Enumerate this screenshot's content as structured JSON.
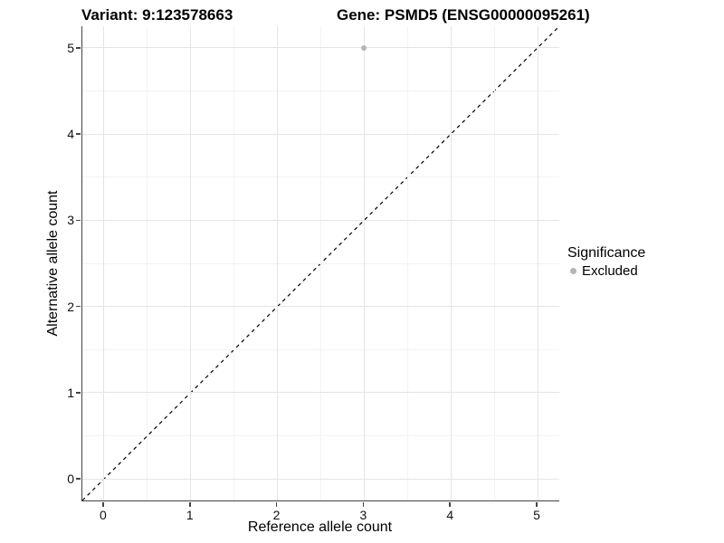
{
  "titles": {
    "variant": "Variant: 9:123578663",
    "gene": "Gene: PSMD5 (ENSG00000095261)"
  },
  "chart_data": {
    "type": "scatter",
    "xlabel": "Reference allele count",
    "ylabel": "Alternative allele count",
    "xlim": [
      -0.25,
      5.25
    ],
    "ylim": [
      -0.25,
      5.25
    ],
    "x_ticks": [
      0,
      1,
      2,
      3,
      4,
      5
    ],
    "y_ticks": [
      0,
      1,
      2,
      3,
      4,
      5
    ],
    "x_minor_ticks": [
      0.5,
      1.5,
      2.5,
      3.5,
      4.5
    ],
    "y_minor_ticks": [
      0.5,
      1.5,
      2.5,
      3.5,
      4.5
    ],
    "grid": true,
    "series": [
      {
        "name": "Excluded",
        "color": "#b5b5b5",
        "points": [
          {
            "x": 3,
            "y": 5
          }
        ]
      }
    ],
    "reference_line": {
      "type": "identity",
      "style": "dashed",
      "color": "#000000",
      "from": [
        -0.25,
        -0.25
      ],
      "to": [
        5.25,
        5.25
      ]
    },
    "legend": {
      "position": "right",
      "title": "Significance",
      "items": [
        {
          "label": "Excluded",
          "color": "#b5b5b5"
        }
      ]
    }
  },
  "colors": {
    "grid_major": "#e5e5e5",
    "grid_minor": "#f3f3f3",
    "axis_line": "#444444",
    "tick_text": "#111111",
    "title_text": "#000000"
  }
}
